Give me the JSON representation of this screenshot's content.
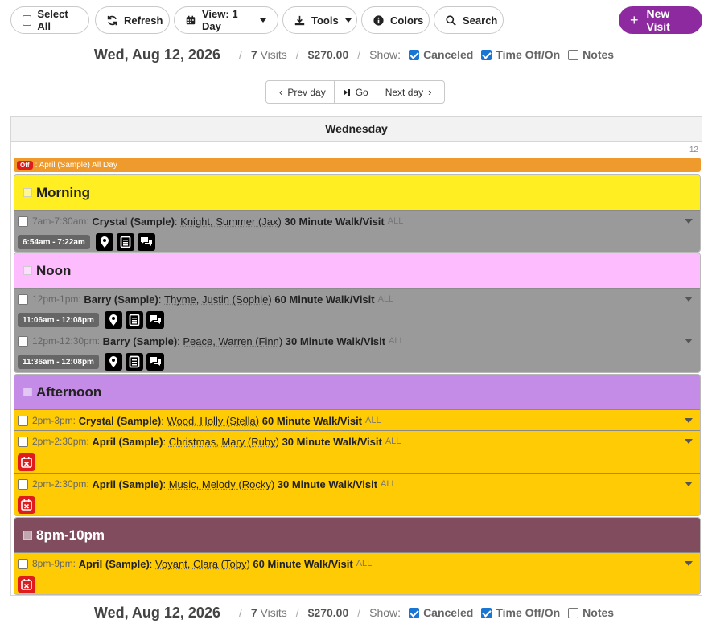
{
  "toolbar": {
    "select_all": "Select All",
    "refresh": "Refresh",
    "view": "View: 1 Day",
    "tools": "Tools",
    "colors": "Colors",
    "search": "Search",
    "new_visit": "New Visit"
  },
  "summary": {
    "date": "Wed, Aug 12, 2026",
    "visits_count": "7",
    "visits_label": "Visits",
    "amount": "$270.00",
    "show_label": "Show:",
    "canceled": "Canceled",
    "timeoff": "Time Off/On",
    "notes": "Notes"
  },
  "nav": {
    "prev": "Prev day",
    "go": "Go",
    "next": "Next day"
  },
  "calendar": {
    "day_name": "Wednesday",
    "day_number": "12",
    "time_off": {
      "tag": "Off",
      "text": ": April (Sample) All Day"
    },
    "blocks": [
      {
        "label": "Morning",
        "color": "#ffee22",
        "visits": [
          {
            "time": "7am-7:30am:",
            "staff": "Crystal (Sample)",
            "client": "Knight, Summer (Jax)",
            "service": "30 Minute Walk/Visit",
            "all": "ALL",
            "actual": "6:54am - 7:22am"
          }
        ]
      },
      {
        "label": "Noon",
        "color": "#fdbcfd",
        "visits": [
          {
            "time": "12pm-1pm:",
            "staff": "Barry (Sample)",
            "client": "Thyme, Justin (Sophie)",
            "service": "60 Minute Walk/Visit",
            "all": "ALL",
            "actual": "11:06am - 12:08pm"
          },
          {
            "time": "12pm-12:30pm:",
            "staff": "Barry (Sample)",
            "client": "Peace, Warren (Finn)",
            "service": "30 Minute Walk/Visit",
            "all": "ALL",
            "actual": "11:36am - 12:08pm"
          }
        ]
      },
      {
        "label": "Afternoon",
        "color": "#c48ce6",
        "visits": [
          {
            "time": "2pm-3pm:",
            "staff": "Crystal (Sample)",
            "client": "Wood, Holly (Stella)",
            "service": "60 Minute Walk/Visit",
            "all": "ALL"
          },
          {
            "time": "2pm-2:30pm:",
            "staff": "April (Sample)",
            "client": "Christmas, Mary (Ruby)",
            "service": "30 Minute Walk/Visit",
            "all": "ALL"
          },
          {
            "time": "2pm-2:30pm:",
            "staff": "April (Sample)",
            "client": "Music, Melody (Rocky)",
            "service": "30 Minute Walk/Visit",
            "all": "ALL"
          }
        ]
      },
      {
        "label": "8pm-10pm",
        "color": "#804c5e",
        "visits": [
          {
            "time": "8pm-9pm:",
            "staff": "April (Sample)",
            "client": "Voyant, Clara (Toby)",
            "service": "60 Minute Walk/Visit",
            "all": "ALL"
          }
        ]
      }
    ]
  },
  "icons": {
    "refresh": "refresh-icon",
    "calendar": "calendar-icon",
    "download": "download-icon",
    "info": "info-icon",
    "search": "search-icon",
    "plus": "plus-icon",
    "map_pin": "map-pin-icon",
    "notes": "notes-icon",
    "chat": "chat-icon",
    "cancel": "calendar-cancel-icon"
  },
  "colors": {
    "accent": "#8e2aa0",
    "time_off": "#ee9a2c",
    "completed": "#9a9a9a",
    "scheduled": "#ffcb05",
    "cancel": "#e01b1b"
  }
}
